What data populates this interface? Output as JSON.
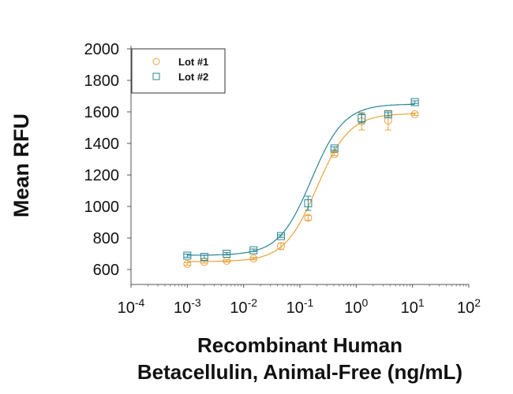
{
  "chart_data": {
    "type": "scatter",
    "title": "",
    "ylabel": "Mean RFU",
    "xlabel_lines": [
      "Recombinant Human",
      "Betacellulin, Animal-Free (ng/mL)"
    ],
    "xscale": "log",
    "xlim_exp": [
      -4,
      2
    ],
    "x_tick_exponents": [
      "-4",
      "-3",
      "-2",
      "-1",
      "0",
      "1",
      "2"
    ],
    "ylim": [
      600,
      2000
    ],
    "y_ticks": [
      600,
      800,
      1000,
      1200,
      1400,
      1600,
      1800,
      2000
    ],
    "grid": false,
    "legend_position": "top-left",
    "fit": "4-parameter logistic",
    "series": [
      {
        "name": "Lot #1",
        "marker": "circle",
        "color": "#e8a33a",
        "x": [
          0.001,
          0.002,
          0.005,
          0.015,
          0.046,
          0.14,
          0.41,
          1.25,
          3.7,
          11
        ],
        "y": [
          635,
          648,
          655,
          670,
          748,
          928,
          1332,
          1540,
          1545,
          1585
        ],
        "err": [
          8,
          8,
          8,
          8,
          20,
          15,
          10,
          55,
          60,
          8
        ],
        "fit_params": {
          "bottom": 650,
          "top": 1590,
          "ec50": 0.2,
          "hill": 1.5
        }
      },
      {
        "name": "Lot #2",
        "marker": "square",
        "color": "#2a8593",
        "x": [
          0.001,
          0.002,
          0.005,
          0.015,
          0.046,
          0.14,
          0.41,
          1.25,
          3.7,
          11
        ],
        "y": [
          688,
          680,
          700,
          722,
          812,
          1020,
          1368,
          1560,
          1585,
          1662
        ],
        "err": [
          10,
          10,
          8,
          8,
          8,
          45,
          10,
          30,
          10,
          8
        ],
        "fit_params": {
          "bottom": 690,
          "top": 1650,
          "ec50": 0.16,
          "hill": 1.5
        }
      }
    ]
  }
}
